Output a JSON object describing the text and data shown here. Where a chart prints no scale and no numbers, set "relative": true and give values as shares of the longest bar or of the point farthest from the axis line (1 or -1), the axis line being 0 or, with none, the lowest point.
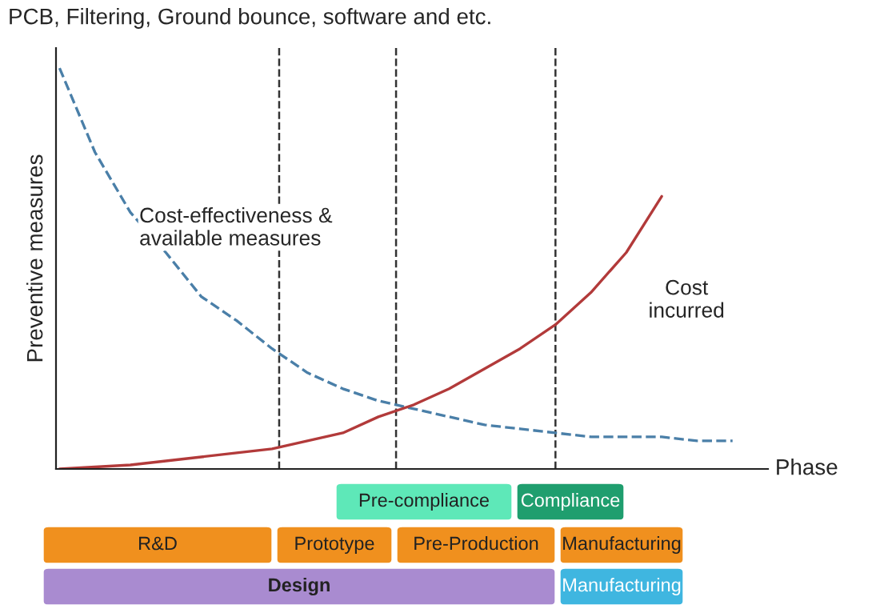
{
  "chart_data": {
    "type": "line",
    "relative": true,
    "title": "PCB, Filtering, Ground bounce, software and etc.",
    "xlabel": "Phase",
    "ylabel": "Preventive measures",
    "categories": [
      null,
      null,
      null,
      null,
      null,
      null,
      null,
      null,
      null,
      null,
      null,
      null,
      null,
      null,
      null,
      null,
      null,
      null,
      null,
      null,
      null
    ],
    "series": [
      {
        "name": "Cost-effectiveness & available measures",
        "color": "#4a7fa8",
        "line_style": "dashed",
        "values": [
          1.0,
          0.79,
          0.64,
          0.54,
          0.43,
          0.37,
          0.3,
          0.24,
          0.2,
          0.17,
          0.15,
          0.13,
          0.11,
          0.1,
          0.09,
          0.08,
          0.08,
          0.08,
          0.07,
          0.07,
          null
        ]
      },
      {
        "name": "Cost incurred",
        "color": "#b23a3a",
        "line_style": "solid",
        "values": [
          0,
          0.005,
          0.01,
          0.02,
          0.03,
          0.04,
          0.05,
          0.07,
          0.09,
          0.13,
          0.16,
          0.2,
          0.25,
          0.3,
          0.36,
          0.44,
          0.54,
          0.68,
          null,
          null,
          null
        ]
      }
    ],
    "annotations": [
      "Pre-compliance",
      "Compliance",
      "R&D",
      "Prototype",
      "Pre-Production",
      "Manufacturing",
      "Design",
      "Manufacturing"
    ],
    "legend": false
  }
}
